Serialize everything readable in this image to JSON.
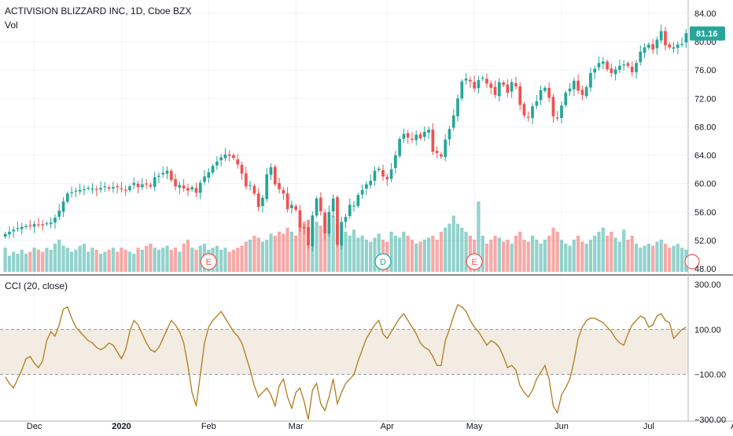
{
  "chart_data": [
    {
      "type": "candlestick",
      "title": "ACTIVISION BLIZZARD INC, 1D, Cboe BZX",
      "volume_label": "Vol",
      "ylim": [
        48,
        84
      ],
      "y_ticks": [
        "84.00",
        "80.00",
        "76.00",
        "72.00",
        "68.00",
        "64.00",
        "60.00",
        "56.00",
        "52.00",
        "48.00"
      ],
      "last_price": "81.16",
      "x_labels": [
        "Dec",
        "2020",
        "Feb",
        "Mar",
        "Apr",
        "May",
        "Jun",
        "Jul",
        "Au"
      ],
      "event_markers": [
        "E",
        "D",
        "E"
      ],
      "colors": {
        "up": "#26a69a",
        "down": "#ef5350",
        "last_price_bg": "#26a69a"
      },
      "close": [
        52.9,
        53.2,
        53.5,
        53.7,
        53.9,
        54.0,
        54.1,
        54.3,
        54.2,
        54.1,
        54.4,
        54.5,
        55.2,
        56.2,
        57.5,
        58.6,
        58.8,
        59.0,
        59.1,
        59.2,
        59.4,
        59.3,
        59.1,
        59.4,
        59.6,
        59.3,
        59.5,
        59.5,
        59.2,
        59.0,
        59.6,
        60.1,
        59.5,
        59.9,
        60.0,
        59.6,
        60.9,
        61.1,
        61.5,
        61.8,
        60.5,
        59.6,
        59.8,
        59.3,
        59.0,
        59.5,
        58.7,
        60.1,
        61.0,
        61.6,
        62.5,
        63.1,
        63.7,
        64.1,
        63.9,
        63.6,
        62.7,
        61.4,
        59.6,
        59.8,
        58.6,
        56.7,
        58.0,
        61.3,
        62.3,
        59.9,
        59.2,
        58.6,
        56.4,
        57.0,
        56.3,
        53.8,
        53.7,
        51.3,
        55.5,
        57.9,
        56.1,
        53.0,
        56.0,
        57.9,
        51.4,
        54.6,
        55.3,
        57.0,
        56.9,
        58.4,
        59.1,
        59.9,
        60.4,
        61.8,
        62.1,
        61.0,
        60.6,
        62.0,
        64.0,
        66.3,
        67.0,
        66.5,
        66.2,
        66.9,
        66.4,
        67.3,
        67.6,
        64.5,
        64.3,
        63.8,
        66.2,
        67.7,
        69.6,
        72.0,
        74.4,
        74.8,
        74.4,
        73.4,
        74.6,
        74.9,
        74.1,
        73.5,
        72.5,
        74.3,
        73.9,
        72.8,
        74.3,
        73.7,
        71.1,
        69.6,
        69.3,
        70.9,
        71.6,
        73.2,
        73.5,
        72.1,
        69.5,
        69.3,
        71.0,
        72.8,
        73.4,
        74.5,
        73.1,
        72.5,
        73.6,
        75.6,
        76.2,
        77.0,
        77.2,
        76.1,
        75.6,
        76.1,
        76.6,
        76.8,
        76.6,
        75.7,
        77.0,
        78.6,
        79.2,
        79.6,
        78.9,
        80.3,
        81.5,
        79.5,
        79.2,
        79.2,
        79.6,
        79.7,
        81.2
      ],
      "volume": [
        6.0,
        4.0,
        5.0,
        4.5,
        5.5,
        4.5,
        5.0,
        6.0,
        5.5,
        5.0,
        6.0,
        5.5,
        7.0,
        8.0,
        6.5,
        6.0,
        5.0,
        5.5,
        6.5,
        7.0,
        5.0,
        6.0,
        5.5,
        4.5,
        5.0,
        5.5,
        6.0,
        5.0,
        6.0,
        5.5,
        5.0,
        4.5,
        6.0,
        5.5,
        6.5,
        7.0,
        6.0,
        5.5,
        6.0,
        6.5,
        5.5,
        6.0,
        5.0,
        7.0,
        8.0,
        6.0,
        5.5,
        6.5,
        7.0,
        5.5,
        6.0,
        6.5,
        5.5,
        6.0,
        5.0,
        5.5,
        6.0,
        6.5,
        7.5,
        8.0,
        9.0,
        8.5,
        7.5,
        8.0,
        9.5,
        9.0,
        10.0,
        9.5,
        11.0,
        10.0,
        9.0,
        12.0,
        10.5,
        13.0,
        11.0,
        12.5,
        11.5,
        13.5,
        12.0,
        11.0,
        12.0,
        11.5,
        10.0,
        9.0,
        10.5,
        8.5,
        9.0,
        8.0,
        7.5,
        8.5,
        9.5,
        8.0,
        7.5,
        10.0,
        9.0,
        8.5,
        10.0,
        9.0,
        8.0,
        7.0,
        7.5,
        8.0,
        8.5,
        9.0,
        8.0,
        10.0,
        11.0,
        12.0,
        14.0,
        12.0,
        11.0,
        10.0,
        9.0,
        8.0,
        10.0,
        9.0,
        7.0,
        8.0,
        9.0,
        8.5,
        7.5,
        8.0,
        7.0,
        9.0,
        10.0,
        8.0,
        7.5,
        9.0,
        8.0,
        7.0,
        8.0,
        9.0,
        11.0,
        10.0,
        8.0,
        7.0,
        6.5,
        8.0,
        9.0,
        7.5,
        7.0,
        8.0,
        9.0,
        10.0,
        11.0,
        9.0,
        10.0,
        8.5,
        7.5,
        9.0,
        8.0,
        9.0,
        7.0,
        6.0,
        6.5,
        7.0,
        6.5,
        7.5,
        8.0,
        7.0,
        6.0,
        6.5,
        7.0,
        6.0,
        5.5
      ],
      "volume_spikes": {
        "72": 12.5,
        "79": 14.0,
        "114": 17.5,
        "149": 10.5
      }
    },
    {
      "type": "line",
      "title": "CCI (20, close)",
      "ylim": [
        -300,
        300
      ],
      "y_ticks": [
        "300.00",
        "100.00",
        "−100.00",
        "−300.00"
      ],
      "band": [
        -100,
        100
      ],
      "colors": {
        "line": "#b07b1c",
        "band": "#f3ece2"
      },
      "values": [
        -110,
        -140,
        -160,
        -120,
        -80,
        -30,
        -20,
        -50,
        -70,
        -40,
        50,
        90,
        70,
        120,
        190,
        200,
        150,
        110,
        90,
        70,
        50,
        40,
        20,
        10,
        20,
        40,
        30,
        0,
        -30,
        10,
        90,
        140,
        120,
        80,
        40,
        10,
        0,
        20,
        60,
        100,
        140,
        120,
        90,
        40,
        -60,
        -180,
        -240,
        -100,
        40,
        110,
        140,
        160,
        180,
        150,
        120,
        90,
        70,
        40,
        -20,
        -80,
        -150,
        -200,
        -180,
        -160,
        -190,
        -240,
        -150,
        -120,
        -200,
        -250,
        -180,
        -160,
        -220,
        -300,
        -170,
        -140,
        -230,
        -260,
        -200,
        -120,
        -230,
        -180,
        -140,
        -120,
        -100,
        -40,
        10,
        60,
        90,
        120,
        140,
        80,
        60,
        90,
        120,
        150,
        170,
        140,
        110,
        80,
        40,
        20,
        10,
        -20,
        -60,
        -60,
        50,
        100,
        160,
        210,
        200,
        180,
        140,
        110,
        90,
        60,
        30,
        50,
        40,
        20,
        -20,
        -70,
        -60,
        -80,
        -150,
        -180,
        -200,
        -170,
        -120,
        -90,
        -60,
        -120,
        -240,
        -270,
        -190,
        -160,
        -120,
        -40,
        60,
        110,
        140,
        150,
        150,
        140,
        130,
        110,
        90,
        60,
        40,
        30,
        80,
        120,
        140,
        160,
        150,
        110,
        120,
        160,
        170,
        140,
        130,
        60,
        80,
        100,
        110
      ]
    }
  ]
}
